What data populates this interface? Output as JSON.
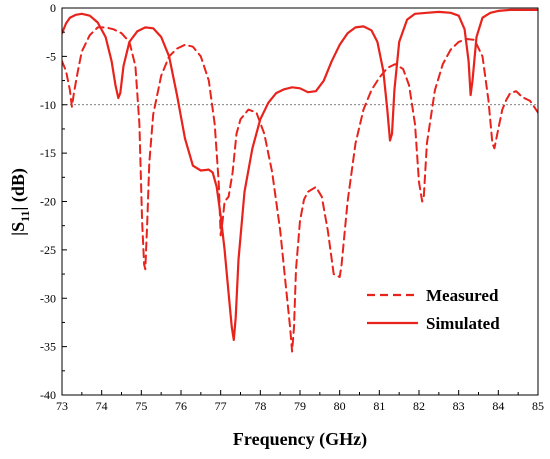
{
  "chart_data": {
    "type": "line",
    "title": "",
    "xlabel": "Frequency (GHz)",
    "ylabel_main": "|S",
    "ylabel_sub": "11",
    "ylabel_end": "| (dB)",
    "xlim": [
      73,
      85
    ],
    "ylim": [
      -40,
      0
    ],
    "xticks": [
      "73",
      "74",
      "75",
      "76",
      "77",
      "78",
      "79",
      "80",
      "81",
      "82",
      "83",
      "84",
      "85"
    ],
    "yticks": [
      "0",
      "-5",
      "-10",
      "-15",
      "-20",
      "-25",
      "-30",
      "-35",
      "-40"
    ],
    "reference_line": -10,
    "legend_position": "lower-right",
    "grid": false,
    "series": [
      {
        "name": "Measured",
        "style": "dashed",
        "color": "#e8231c",
        "x": [
          73.0,
          73.1,
          73.2,
          73.25,
          73.3,
          73.4,
          73.5,
          73.7,
          73.9,
          74.1,
          74.3,
          74.5,
          74.7,
          74.85,
          74.95,
          75.02,
          75.07,
          75.1,
          75.15,
          75.2,
          75.3,
          75.5,
          75.7,
          75.9,
          76.1,
          76.3,
          76.5,
          76.7,
          76.85,
          76.95,
          77.0,
          77.05,
          77.1,
          77.2,
          77.3,
          77.4,
          77.5,
          77.7,
          77.9,
          78.1,
          78.3,
          78.5,
          78.65,
          78.75,
          78.8,
          78.85,
          78.9,
          79.0,
          79.1,
          79.2,
          79.4,
          79.55,
          79.7,
          79.85,
          80.0,
          80.05,
          80.2,
          80.4,
          80.6,
          80.8,
          81.0,
          81.2,
          81.4,
          81.6,
          81.75,
          81.9,
          82.0,
          82.08,
          82.12,
          82.2,
          82.4,
          82.6,
          82.8,
          83.0,
          83.2,
          83.4,
          83.6,
          83.75,
          83.85,
          83.9,
          84.0,
          84.1,
          84.2,
          84.3,
          84.45,
          84.6,
          84.8,
          85.0
        ],
        "y": [
          -5.5,
          -6.5,
          -8.5,
          -10.2,
          -8.8,
          -6.5,
          -4.5,
          -2.8,
          -2.0,
          -2.0,
          -2.2,
          -2.6,
          -3.5,
          -6.0,
          -12.0,
          -22.0,
          -26.5,
          -27.0,
          -22.0,
          -16.0,
          -11.0,
          -7.0,
          -5.0,
          -4.2,
          -3.8,
          -4.0,
          -5.0,
          -7.5,
          -12.0,
          -18.0,
          -23.5,
          -22.0,
          -20.0,
          -19.5,
          -17.0,
          -13.0,
          -11.5,
          -10.5,
          -10.8,
          -13.0,
          -17.0,
          -23.0,
          -29.0,
          -33.0,
          -35.5,
          -33.0,
          -27.0,
          -22.0,
          -19.8,
          -19.0,
          -18.5,
          -19.5,
          -23.0,
          -27.5,
          -27.8,
          -26.5,
          -20.0,
          -14.0,
          -10.5,
          -8.5,
          -7.2,
          -6.2,
          -5.8,
          -6.3,
          -8.0,
          -12.0,
          -18.0,
          -20.0,
          -19.5,
          -14.0,
          -8.5,
          -5.8,
          -4.3,
          -3.5,
          -3.2,
          -3.3,
          -5.0,
          -9.5,
          -14.0,
          -14.5,
          -12.5,
          -10.5,
          -9.5,
          -8.8,
          -8.6,
          -9.2,
          -9.6,
          -10.8
        ]
      },
      {
        "name": "Simulated",
        "style": "solid",
        "color": "#e8231c",
        "x": [
          73.0,
          73.1,
          73.2,
          73.35,
          73.5,
          73.7,
          73.9,
          74.1,
          74.25,
          74.35,
          74.42,
          74.47,
          74.55,
          74.7,
          74.9,
          75.1,
          75.3,
          75.5,
          75.7,
          75.9,
          76.1,
          76.3,
          76.5,
          76.7,
          76.8,
          76.9,
          77.0,
          77.1,
          77.2,
          77.28,
          77.33,
          77.38,
          77.45,
          77.6,
          77.8,
          78.0,
          78.2,
          78.4,
          78.6,
          78.8,
          79.0,
          79.2,
          79.4,
          79.6,
          79.8,
          80.0,
          80.2,
          80.4,
          80.6,
          80.8,
          80.95,
          81.1,
          81.2,
          81.27,
          81.32,
          81.38,
          81.5,
          81.7,
          81.9,
          82.2,
          82.5,
          82.8,
          83.0,
          83.15,
          83.25,
          83.3,
          83.35,
          83.45,
          83.6,
          83.8,
          84.0,
          84.3,
          84.6,
          85.0
        ],
        "y": [
          -2.6,
          -1.6,
          -1.0,
          -0.7,
          -0.6,
          -0.8,
          -1.5,
          -3.0,
          -5.5,
          -8.0,
          -9.3,
          -8.8,
          -6.0,
          -3.5,
          -2.4,
          -2.0,
          -2.1,
          -3.0,
          -5.0,
          -9.0,
          -13.5,
          -16.3,
          -16.8,
          -16.7,
          -17.0,
          -18.5,
          -21.5,
          -25.0,
          -29.5,
          -33.0,
          -34.3,
          -32.0,
          -26.0,
          -19.0,
          -14.5,
          -11.5,
          -9.8,
          -8.8,
          -8.4,
          -8.2,
          -8.3,
          -8.7,
          -8.6,
          -7.5,
          -5.5,
          -3.8,
          -2.6,
          -2.0,
          -1.9,
          -2.3,
          -3.5,
          -6.5,
          -10.5,
          -13.7,
          -13.0,
          -8.5,
          -3.5,
          -1.2,
          -0.6,
          -0.5,
          -0.4,
          -0.5,
          -0.8,
          -2.2,
          -5.5,
          -9.0,
          -7.5,
          -3.0,
          -1.0,
          -0.5,
          -0.3,
          -0.2,
          -0.2,
          -0.2
        ]
      }
    ]
  }
}
